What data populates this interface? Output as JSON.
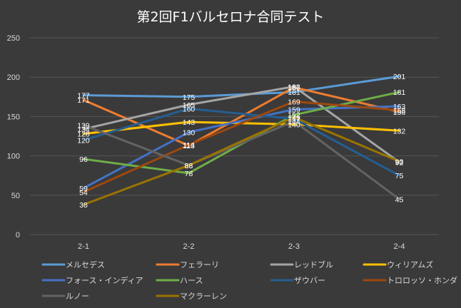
{
  "chart_data": {
    "type": "line",
    "title": "第2回F1バルセロナ合同テスト",
    "categories": [
      "2-1",
      "2-2",
      "2-3",
      "2-4"
    ],
    "ylim": [
      0,
      250
    ],
    "yticks": [
      0,
      50,
      100,
      150,
      200,
      250
    ],
    "grid": true,
    "legend_position": "bottom",
    "series": [
      {
        "name": "メルセデス",
        "color": "#5b9bd5",
        "values": [
          177,
          175,
          181,
          201
        ]
      },
      {
        "name": "フェラーリ",
        "color": "#ed7d31",
        "values": [
          171,
          113,
          187,
          156
        ]
      },
      {
        "name": "レッドブル",
        "color": "#a5a5a5",
        "values": [
          134,
          165,
          188,
          92
        ]
      },
      {
        "name": "ウィリアムズ",
        "color": "#ffc000",
        "values": [
          128,
          143,
          140,
          132
        ]
      },
      {
        "name": "フォース・インディア",
        "color": "#4472c4",
        "values": [
          59,
          130,
          159,
          163
        ]
      },
      {
        "name": "ハース",
        "color": "#70ad47",
        "values": [
          96,
          78,
          152,
          181
        ]
      },
      {
        "name": "ザウバー",
        "color": "#255e91",
        "values": [
          120,
          160,
          147,
          75
        ]
      },
      {
        "name": "トロロッソ・ホンダ",
        "color": "#9e480e",
        "values": [
          54,
          114,
          169,
          158
        ]
      },
      {
        "name": "ルノー",
        "color": "#636363",
        "values": [
          139,
          88,
          144,
          45
        ]
      },
      {
        "name": "マクラーレン",
        "color": "#997300",
        "values": [
          38,
          88,
          149,
          93
        ]
      }
    ]
  }
}
